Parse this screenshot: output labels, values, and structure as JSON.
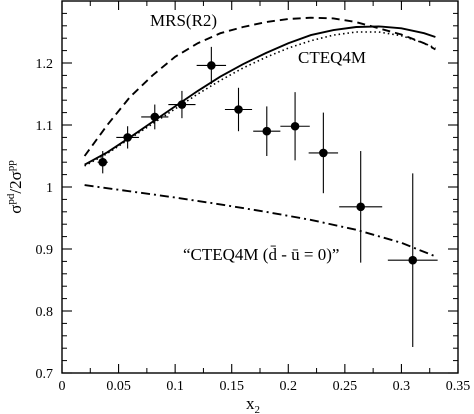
{
  "chart_data": {
    "type": "line",
    "xlabel": "x",
    "xlabel_sub": "2",
    "ylabel": "σ",
    "ylabel_sup1": "pd",
    "ylabel_mid": "/2σ",
    "ylabel_sup2": "pp",
    "xlim": [
      0,
      0.35
    ],
    "ylim": [
      0.7,
      1.3
    ],
    "xticks": [
      0,
      0.05,
      0.1,
      0.15,
      0.2,
      0.25,
      0.3,
      0.35
    ],
    "xtick_labels": [
      "0",
      "0.05",
      "0.1",
      "0.15",
      "0.2",
      "0.25",
      "0.3",
      "0.35"
    ],
    "yticks": [
      0.7,
      0.8,
      0.9,
      1.0,
      1.1,
      1.2
    ],
    "ytick_labels": [
      "0.7",
      "0.8",
      "0.9",
      "1",
      "1.1",
      "1.2"
    ],
    "grid": false,
    "series": [
      {
        "name": "MRS(R2)",
        "style": "dashed",
        "color": "#000000",
        "points": [
          [
            0.02,
            1.05
          ],
          [
            0.04,
            1.1
          ],
          [
            0.06,
            1.145
          ],
          [
            0.08,
            1.18
          ],
          [
            0.1,
            1.21
          ],
          [
            0.12,
            1.232
          ],
          [
            0.14,
            1.248
          ],
          [
            0.16,
            1.258
          ],
          [
            0.18,
            1.266
          ],
          [
            0.2,
            1.271
          ],
          [
            0.22,
            1.273
          ],
          [
            0.24,
            1.272
          ],
          [
            0.26,
            1.266
          ],
          [
            0.28,
            1.256
          ],
          [
            0.3,
            1.246
          ],
          [
            0.32,
            1.232
          ],
          [
            0.33,
            1.222
          ]
        ]
      },
      {
        "name": "CTEQ4M",
        "style": "solid",
        "color": "#000000",
        "points": [
          [
            0.02,
            1.036
          ],
          [
            0.04,
            1.056
          ],
          [
            0.06,
            1.08
          ],
          [
            0.08,
            1.105
          ],
          [
            0.1,
            1.13
          ],
          [
            0.12,
            1.155
          ],
          [
            0.14,
            1.178
          ],
          [
            0.16,
            1.198
          ],
          [
            0.18,
            1.216
          ],
          [
            0.2,
            1.232
          ],
          [
            0.22,
            1.245
          ],
          [
            0.24,
            1.253
          ],
          [
            0.26,
            1.258
          ],
          [
            0.28,
            1.259
          ],
          [
            0.3,
            1.256
          ],
          [
            0.32,
            1.248
          ],
          [
            0.33,
            1.242
          ]
        ]
      },
      {
        "name": "",
        "style": "dotted",
        "color": "#000000",
        "points": [
          [
            0.02,
            1.034
          ],
          [
            0.04,
            1.054
          ],
          [
            0.06,
            1.078
          ],
          [
            0.08,
            1.102
          ],
          [
            0.1,
            1.126
          ],
          [
            0.12,
            1.15
          ],
          [
            0.14,
            1.172
          ],
          [
            0.16,
            1.192
          ],
          [
            0.18,
            1.209
          ],
          [
            0.2,
            1.224
          ],
          [
            0.22,
            1.236
          ],
          [
            0.24,
            1.245
          ],
          [
            0.26,
            1.25
          ],
          [
            0.28,
            1.25
          ],
          [
            0.3,
            1.244
          ],
          [
            0.32,
            1.232
          ],
          [
            0.33,
            1.224
          ]
        ]
      },
      {
        "name": "“CTEQ4M (d̄ - ū = 0)”",
        "style": "dashdot",
        "color": "#000000",
        "points": [
          [
            0.02,
            1.003
          ],
          [
            0.06,
            0.993
          ],
          [
            0.1,
            0.983
          ],
          [
            0.14,
            0.972
          ],
          [
            0.18,
            0.96
          ],
          [
            0.22,
            0.947
          ],
          [
            0.26,
            0.931
          ],
          [
            0.3,
            0.91
          ],
          [
            0.33,
            0.888
          ]
        ]
      }
    ],
    "data_points": [
      {
        "x": 0.036,
        "y": 1.04,
        "xerr": 0.0045,
        "yerr": 0.018
      },
      {
        "x": 0.058,
        "y": 1.08,
        "xerr": 0.01,
        "yerr": 0.018
      },
      {
        "x": 0.082,
        "y": 1.113,
        "xerr": 0.012,
        "yerr": 0.02
      },
      {
        "x": 0.106,
        "y": 1.133,
        "xerr": 0.012,
        "yerr": 0.022
      },
      {
        "x": 0.132,
        "y": 1.196,
        "xerr": 0.013,
        "yerr": 0.03
      },
      {
        "x": 0.156,
        "y": 1.125,
        "xerr": 0.012,
        "yerr": 0.035
      },
      {
        "x": 0.181,
        "y": 1.09,
        "xerr": 0.012,
        "yerr": 0.04
      },
      {
        "x": 0.206,
        "y": 1.098,
        "xerr": 0.013,
        "yerr": 0.055
      },
      {
        "x": 0.231,
        "y": 1.055,
        "xerr": 0.013,
        "yerr": 0.065
      },
      {
        "x": 0.264,
        "y": 0.968,
        "xerr": 0.019,
        "yerr": 0.09
      },
      {
        "x": 0.31,
        "y": 0.882,
        "xerr": 0.022,
        "yerr": 0.14
      }
    ],
    "annotations": {
      "mrs_label": "MRS(R2)",
      "cteq_label": "CTEQ4M",
      "cteq_zero_label": "“CTEQ4M (d̄ - ū = 0)”"
    }
  }
}
